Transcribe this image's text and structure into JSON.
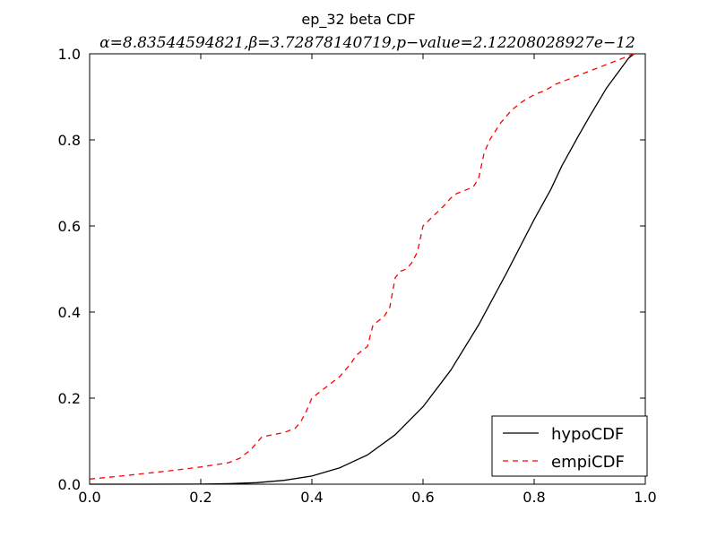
{
  "chart_data": {
    "type": "line",
    "title": "ep_32 beta CDF",
    "subtitle": "α=8.83544594821,β=3.72878140719,p−value=2.12208028927e−12",
    "xlabel": "",
    "ylabel": "",
    "xlim": [
      0.0,
      1.0
    ],
    "ylim": [
      0.0,
      1.0
    ],
    "xticks": [
      0.0,
      0.2,
      0.4,
      0.6,
      0.8,
      1.0
    ],
    "xtick_labels": [
      "0.0",
      "0.2",
      "0.4",
      "0.6",
      "0.8",
      "1.0"
    ],
    "yticks": [
      0.0,
      0.2,
      0.4,
      0.6,
      0.8,
      1.0
    ],
    "ytick_labels": [
      "0.0",
      "0.2",
      "0.4",
      "0.6",
      "0.8",
      "1.0"
    ],
    "grid": false,
    "legend_position": "lower-right",
    "series": [
      {
        "name": "hypoCDF",
        "color": "#000000",
        "style": "solid",
        "x": [
          0.0,
          0.1,
          0.2,
          0.25,
          0.3,
          0.35,
          0.4,
          0.45,
          0.5,
          0.55,
          0.6,
          0.65,
          0.7,
          0.75,
          0.8,
          0.83,
          0.85,
          0.88,
          0.9,
          0.93,
          0.95,
          0.97,
          0.98
        ],
        "y": [
          0.0,
          0.0,
          0.0003,
          0.0012,
          0.0035,
          0.009,
          0.019,
          0.038,
          0.068,
          0.115,
          0.18,
          0.265,
          0.37,
          0.49,
          0.615,
          0.685,
          0.74,
          0.81,
          0.855,
          0.92,
          0.955,
          0.99,
          1.0
        ]
      },
      {
        "name": "empiCDF",
        "color": "#ff0000",
        "style": "dashed",
        "x": [
          0.0,
          0.05,
          0.1,
          0.15,
          0.2,
          0.25,
          0.27,
          0.29,
          0.31,
          0.33,
          0.35,
          0.37,
          0.38,
          0.39,
          0.4,
          0.41,
          0.43,
          0.45,
          0.47,
          0.48,
          0.5,
          0.51,
          0.52,
          0.53,
          0.54,
          0.55,
          0.56,
          0.57,
          0.58,
          0.59,
          0.6,
          0.62,
          0.64,
          0.65,
          0.66,
          0.67,
          0.68,
          0.69,
          0.7,
          0.71,
          0.72,
          0.74,
          0.76,
          0.78,
          0.8,
          0.82,
          0.84,
          0.86,
          0.88,
          0.9,
          0.92,
          0.94,
          0.96,
          0.98
        ],
        "y": [
          0.012,
          0.018,
          0.025,
          0.032,
          0.04,
          0.05,
          0.06,
          0.08,
          0.11,
          0.115,
          0.12,
          0.13,
          0.145,
          0.17,
          0.2,
          0.21,
          0.23,
          0.25,
          0.28,
          0.3,
          0.32,
          0.37,
          0.38,
          0.39,
          0.41,
          0.48,
          0.495,
          0.5,
          0.515,
          0.54,
          0.6,
          0.625,
          0.65,
          0.665,
          0.675,
          0.68,
          0.685,
          0.69,
          0.71,
          0.77,
          0.8,
          0.84,
          0.87,
          0.89,
          0.905,
          0.915,
          0.93,
          0.94,
          0.95,
          0.96,
          0.97,
          0.98,
          0.99,
          1.0
        ]
      }
    ]
  }
}
